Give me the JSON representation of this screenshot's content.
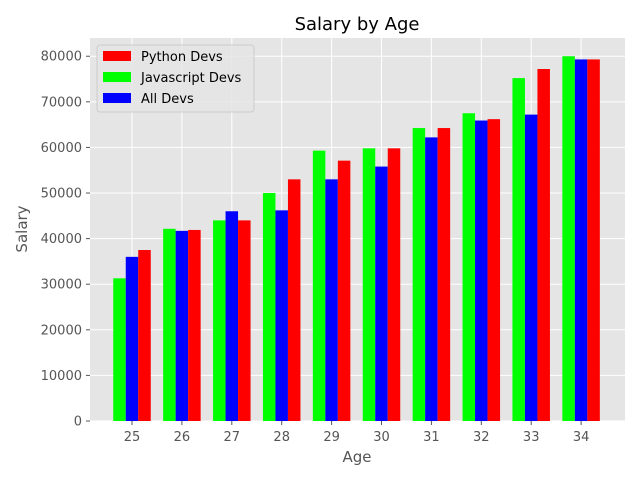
{
  "chart_data": {
    "type": "bar",
    "title": "Salary by Age",
    "xlabel": "Age",
    "ylabel": "Salary",
    "categories": [
      "25",
      "26",
      "27",
      "28",
      "29",
      "30",
      "31",
      "32",
      "33",
      "34"
    ],
    "series": [
      {
        "name": "Javascript Devs",
        "color": "#00ff00",
        "values": [
          31300,
          42150,
          44000,
          50000,
          59300,
          59800,
          64250,
          67500,
          75200,
          80000
        ]
      },
      {
        "name": "All Devs",
        "color": "#0000ff",
        "values": [
          36000,
          41700,
          46000,
          46200,
          53000,
          55800,
          62200,
          65900,
          67200,
          79300
        ]
      },
      {
        "name": "Python Devs",
        "color": "#ff0000",
        "values": [
          37500,
          41900,
          44000,
          53000,
          57100,
          59800,
          64250,
          66200,
          77200,
          79300
        ]
      }
    ],
    "legend_order": [
      "Python Devs",
      "Javascript Devs",
      "All Devs"
    ],
    "ylim": [
      0,
      84000
    ],
    "yticks": [
      0,
      10000,
      20000,
      30000,
      40000,
      50000,
      60000,
      70000,
      80000
    ],
    "grid": true,
    "legend_position": "top-left",
    "style": {
      "background": "#e5e5e5",
      "grid_color": "#ffffff"
    }
  }
}
